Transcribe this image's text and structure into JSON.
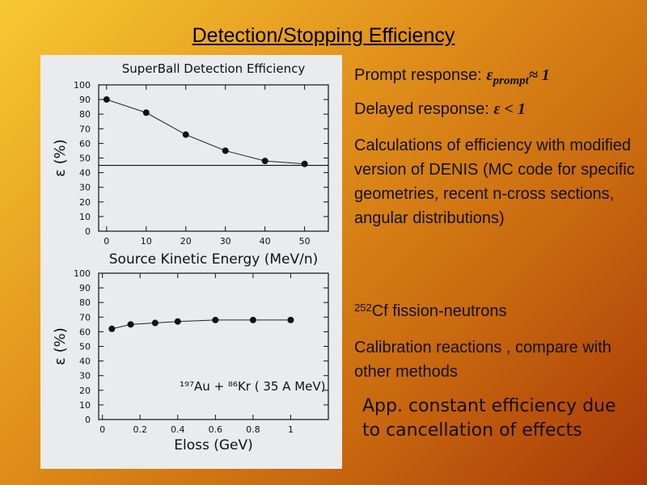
{
  "slide": {
    "title": "Detection/Stopping Efficiency"
  },
  "notes": {
    "prompt_label": "Prompt response: ",
    "prompt_symbol": "εprompt≈ 1",
    "prompt_eps": "ε",
    "prompt_sub": "prompt",
    "prompt_rel": "≈ 1",
    "delayed_label": "Delayed response: ",
    "delayed_symbol": "ε < 1",
    "calc_text": "Calculations of efficiency with modified version of DENIS (MC code for specific geometries, recent n-cross sections, angular distributions)",
    "cf_mass": "252",
    "cf_text": "Cf fission-neutrons",
    "calib_text": "Calibration reactions , compare with other methods",
    "conclusion": "App. constant efficiency due to cancellation of effects"
  },
  "chart_data": [
    {
      "type": "line",
      "title": "SuperBall Detection Efficiency",
      "xlabel": "Source Kinetic Energy (MeV/n)",
      "ylabel": "ε (%)",
      "xlim": [
        -2,
        56
      ],
      "ylim": [
        0,
        100
      ],
      "xticks": [
        0,
        10,
        20,
        30,
        40,
        50
      ],
      "xtick_labels": [
        "0",
        "10",
        "20",
        "30",
        "40",
        "50"
      ],
      "yticks": [
        0,
        10,
        20,
        30,
        40,
        50,
        60,
        70,
        80,
        90,
        100
      ],
      "ytick_labels": [
        "0",
        "10",
        "20",
        "30",
        "40",
        "50",
        "60",
        "70",
        "80",
        "90",
        "100"
      ],
      "x": [
        0,
        10,
        20,
        30,
        40,
        50
      ],
      "y": [
        90,
        81,
        66,
        55,
        48,
        46
      ],
      "hline": 45,
      "grid": false
    },
    {
      "type": "line",
      "title": "",
      "annotation": "¹⁹⁷Au + ⁸⁶Kr ( 35 A MeV)",
      "xlabel": "Eloss (GeV)",
      "ylabel": "ε (%)",
      "xlim": [
        -0.02,
        1.2
      ],
      "ylim": [
        0,
        100
      ],
      "xticks": [
        0,
        0.2,
        0.4,
        0.6,
        0.8,
        1
      ],
      "xtick_labels": [
        "0",
        "0.2",
        "0.4",
        "0.6",
        "0.8",
        "1"
      ],
      "yticks": [
        0,
        10,
        20,
        30,
        40,
        50,
        60,
        70,
        80,
        90,
        100
      ],
      "ytick_labels": [
        "0",
        "10",
        "20",
        "30",
        "40",
        "50",
        "60",
        "70",
        "80",
        "90",
        "100"
      ],
      "x": [
        0.05,
        0.15,
        0.28,
        0.4,
        0.6,
        0.8,
        1.0
      ],
      "y": [
        62,
        65,
        66,
        67,
        68,
        68,
        68
      ],
      "grid": false
    }
  ]
}
